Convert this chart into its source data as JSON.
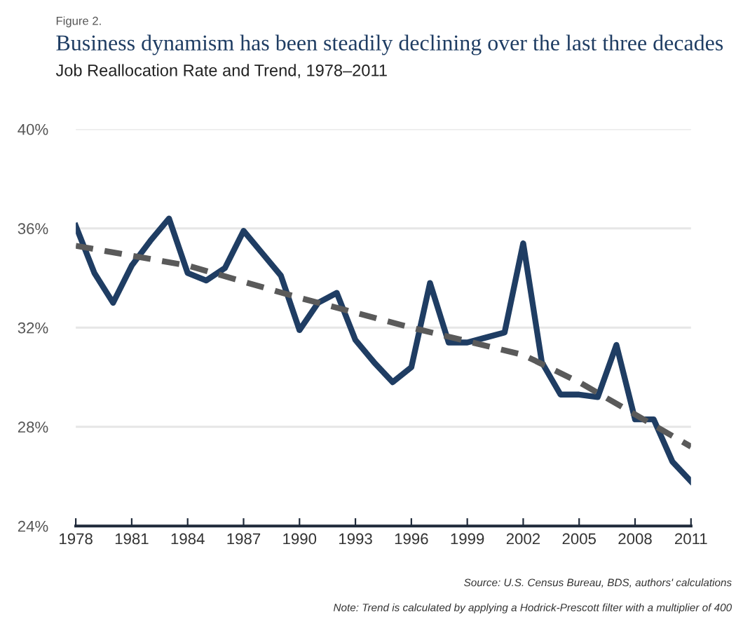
{
  "chart_data": {
    "type": "line",
    "title": "Business dynamism has been steadily declining over the last three decades",
    "subtitle": "Job Reallocation Rate and Trend, 1978–2011",
    "annotations": [
      "Figure 2.",
      "Source: U.S. Census Bureau, BDS, authors' calculations",
      "Note: Trend is calculated by applying a Hodrick-Prescott filter with a multiplier of 400"
    ],
    "x": [
      1978,
      1979,
      1980,
      1981,
      1982,
      1983,
      1984,
      1985,
      1986,
      1987,
      1988,
      1989,
      1990,
      1991,
      1992,
      1993,
      1994,
      1995,
      1996,
      1997,
      1998,
      1999,
      2000,
      2001,
      2002,
      2003,
      2004,
      2005,
      2006,
      2007,
      2008,
      2009,
      2010,
      2011
    ],
    "series": [
      {
        "color": "#1f3d63",
        "line_style": "solid",
        "values": [
          36.1,
          34.2,
          33.0,
          34.5,
          35.5,
          36.4,
          34.2,
          33.9,
          34.4,
          35.9,
          35.0,
          34.1,
          31.9,
          33.0,
          33.4,
          31.5,
          30.6,
          29.8,
          30.4,
          33.8,
          31.4,
          31.4,
          31.6,
          31.8,
          35.4,
          30.6,
          29.3,
          29.3,
          29.2,
          31.3,
          28.3,
          28.3,
          26.6,
          25.8
        ]
      },
      {
        "color": "#5a5a5a",
        "line_style": "dashed",
        "x": [
          1978,
          1984,
          1990,
          1996,
          2002,
          2005,
          2008,
          2011
        ],
        "values": [
          35.3,
          34.5,
          33.2,
          32.0,
          30.9,
          29.8,
          28.5,
          27.2
        ]
      }
    ],
    "xlim": [
      1978,
      2011
    ],
    "xticks": [
      1978,
      1981,
      1984,
      1987,
      1990,
      1993,
      1996,
      1999,
      2002,
      2005,
      2008,
      2011
    ],
    "ylim": [
      24,
      40
    ],
    "yticks": [
      {
        "value": 24,
        "label": "24%"
      },
      {
        "value": 28,
        "label": "28%"
      },
      {
        "value": 32,
        "label": "32%"
      },
      {
        "value": 36,
        "label": "36%"
      },
      {
        "value": 40,
        "label": "40%"
      }
    ],
    "grid": "y",
    "marker": "none"
  }
}
